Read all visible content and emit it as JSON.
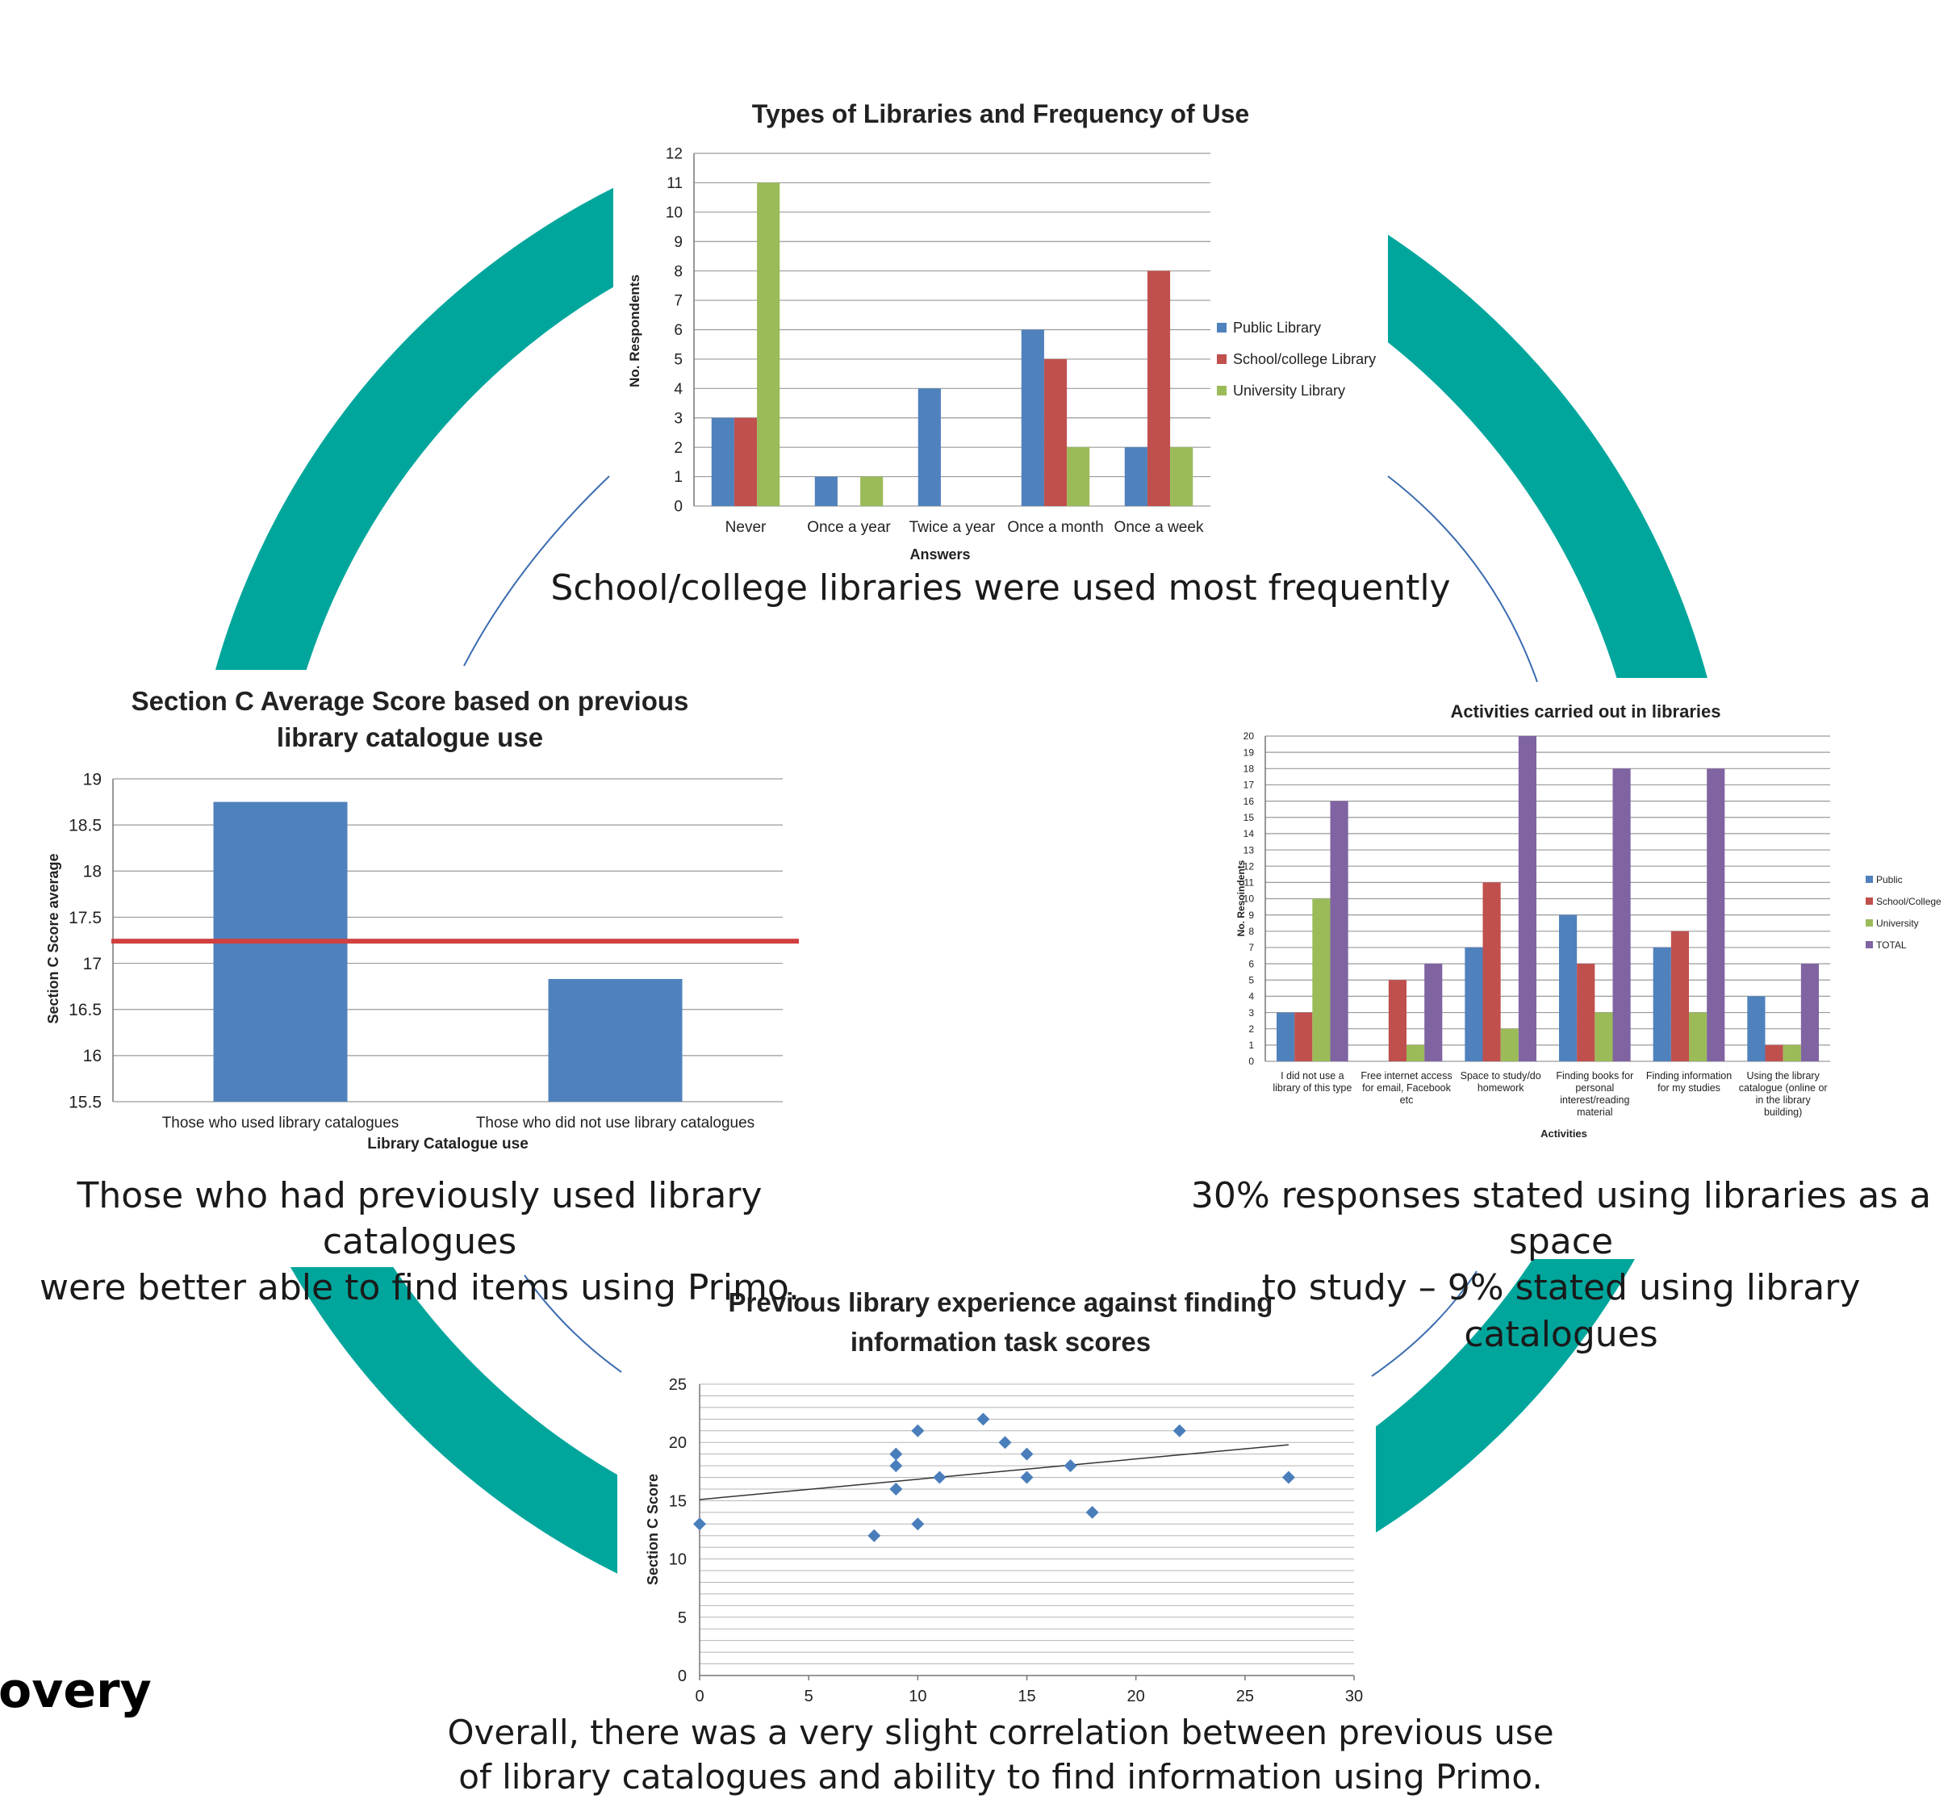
{
  "colors": {
    "ring": "#00A69C",
    "connector": "#3B6CB0",
    "public": "#4F81BD",
    "school": "#C0504D",
    "university": "#9BBB59",
    "total": "#8064A2",
    "avgline": "#D04040",
    "marker": "#4A7EBB"
  },
  "captions": {
    "top": "School/college libraries were used most frequently",
    "left_line1": "Those who had previously used library catalogues",
    "left_line2": "were better able to find items using Primo.",
    "right_line1": "30% responses stated using libraries as a space",
    "right_line2": "to study – 9% stated using library catalogues",
    "bottom_line1": "Overall, there was a very slight correlation between previous use",
    "bottom_line2": "of library catalogues and ability to find information using Primo."
  },
  "side_fragment": "overy",
  "chart_data": [
    {
      "id": "frequency",
      "type": "bar",
      "title": "Types of Libraries and Frequency of Use",
      "xlabel": "Answers",
      "ylabel": "No. Respondents",
      "categories": [
        "Never",
        "Once a year",
        "Twice a year",
        "Once a month",
        "Once a week"
      ],
      "series": [
        {
          "name": "Public Library",
          "color": "#4F81BD",
          "values": [
            3,
            1,
            4,
            6,
            2
          ]
        },
        {
          "name": "School/college Library",
          "color": "#C0504D",
          "values": [
            3,
            0,
            0,
            5,
            8
          ]
        },
        {
          "name": "University Library",
          "color": "#9BBB59",
          "values": [
            11,
            1,
            0,
            2,
            2
          ]
        }
      ],
      "ylim": [
        0,
        12
      ],
      "yticks": [
        0,
        1,
        2,
        3,
        4,
        5,
        6,
        7,
        8,
        9,
        10,
        11,
        12
      ],
      "grid": true,
      "legend": "right"
    },
    {
      "id": "sectionc",
      "type": "bar",
      "title": "Section C Average Score based on previous library catalogue use",
      "title_lines": [
        "Section C Average Score based on previous",
        "library catalogue use"
      ],
      "xlabel": "Library Catalogue use",
      "ylabel": "Section C Score average",
      "categories": [
        "Those who used library catalogues",
        "Those who did not use library catalogues"
      ],
      "values": [
        18.75,
        16.83
      ],
      "reference_line": 17.24,
      "ylim": [
        15.5,
        19
      ],
      "yticks": [
        15.5,
        16,
        16.5,
        17,
        17.5,
        18,
        18.5,
        19
      ],
      "grid": true
    },
    {
      "id": "activities",
      "type": "bar",
      "title": "Activities carried out in libraries",
      "xlabel": "Activities",
      "ylabel": "No. Resoindents",
      "categories": [
        [
          "I did not use a",
          "library of this type"
        ],
        [
          "Free internet access",
          "for email, Facebook",
          "etc"
        ],
        [
          "Space to study/do",
          "homework"
        ],
        [
          "Finding books for",
          "personal",
          "interest/reading",
          "material"
        ],
        [
          "Finding information",
          "for my studies"
        ],
        [
          "Using the library",
          "catalogue (online or",
          "in the library",
          "building)"
        ]
      ],
      "series": [
        {
          "name": "Public",
          "color": "#4F81BD",
          "values": [
            3,
            0,
            7,
            9,
            7,
            4
          ]
        },
        {
          "name": "School/College",
          "color": "#C0504D",
          "values": [
            3,
            5,
            11,
            6,
            8,
            1
          ]
        },
        {
          "name": "University",
          "color": "#9BBB59",
          "values": [
            10,
            1,
            2,
            3,
            3,
            1
          ]
        },
        {
          "name": "TOTAL",
          "color": "#8064A2",
          "values": [
            16,
            6,
            20,
            18,
            18,
            6
          ]
        }
      ],
      "ylim": [
        0,
        20
      ],
      "yticks": [
        0,
        1,
        2,
        3,
        4,
        5,
        6,
        7,
        8,
        9,
        10,
        11,
        12,
        13,
        14,
        15,
        16,
        17,
        18,
        19,
        20
      ],
      "grid": true,
      "legend": "right"
    },
    {
      "id": "experience",
      "type": "scatter",
      "title": "Previous library experience against finding information task scores",
      "title_lines": [
        "Previous library experience against finding",
        "information task scores"
      ],
      "xlabel": "",
      "ylabel": "Section C Score",
      "points": [
        [
          0,
          13
        ],
        [
          8,
          12
        ],
        [
          9,
          19
        ],
        [
          9,
          18
        ],
        [
          9,
          16
        ],
        [
          10,
          21
        ],
        [
          10,
          13
        ],
        [
          11,
          17
        ],
        [
          13,
          22
        ],
        [
          14,
          20
        ],
        [
          15,
          19
        ],
        [
          15,
          17
        ],
        [
          17,
          18
        ],
        [
          18,
          14
        ],
        [
          22,
          21
        ],
        [
          27,
          17
        ]
      ],
      "trendline": {
        "x": [
          0,
          27
        ],
        "y": [
          15.1,
          19.8
        ]
      },
      "xlim": [
        0,
        30
      ],
      "ylim": [
        0,
        25
      ],
      "xticks": [
        0,
        5,
        10,
        15,
        20,
        25,
        30
      ],
      "yticks": [
        0,
        5,
        10,
        15,
        20,
        25
      ],
      "grid": true
    }
  ]
}
